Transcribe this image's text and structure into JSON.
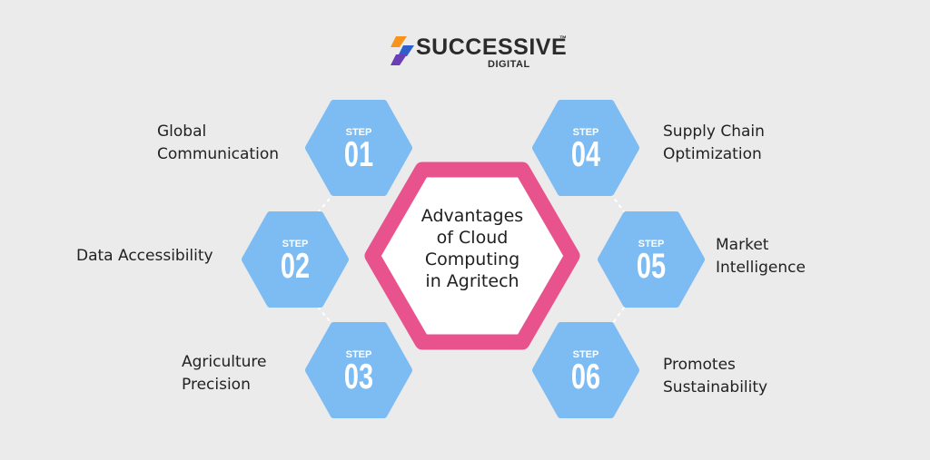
{
  "brand": {
    "name": "SUCCESSIVE",
    "trademark": "™",
    "sub": "DIGITAL",
    "colors": {
      "orange": "#f7941d",
      "blue": "#2e5ec9",
      "purple": "#6a3fb5"
    }
  },
  "center": {
    "lines": [
      "Advantages",
      "of Cloud",
      "Computing",
      "in Agritech"
    ],
    "border_color": "#e8538e",
    "fill_color": "#ffffff"
  },
  "step_color": "#7cbcf3",
  "steps": [
    {
      "word": "STEP",
      "num": "01",
      "lines": [
        "Global",
        "Communication"
      ]
    },
    {
      "word": "STEP",
      "num": "02",
      "lines": [
        "Data Accessibility"
      ]
    },
    {
      "word": "STEP",
      "num": "03",
      "lines": [
        "Agriculture",
        "Precision"
      ]
    },
    {
      "word": "STEP",
      "num": "04",
      "lines": [
        "Supply Chain",
        "Optimization"
      ]
    },
    {
      "word": "STEP",
      "num": "05",
      "lines": [
        "Market",
        "Intelligence"
      ]
    },
    {
      "word": "STEP",
      "num": "06",
      "lines": [
        "Promotes",
        "Sustainability"
      ]
    }
  ]
}
